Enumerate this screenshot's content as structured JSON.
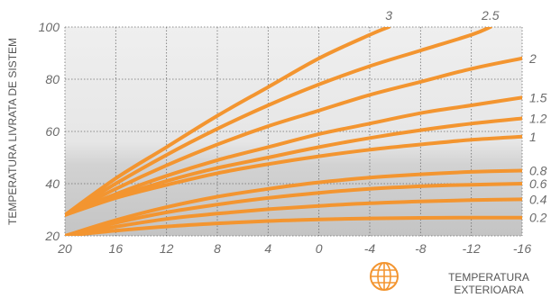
{
  "chart_data": {
    "type": "line",
    "title": "",
    "ylabel": "TEMPERATURA LIVRATA DE SISTEM",
    "xlabel_lines": [
      "TEMPERATURA",
      "EXTERIOARA"
    ],
    "xlabel_icon": "globe-icon",
    "x_ticks": [
      "20",
      "16",
      "12",
      "8",
      "4",
      "0",
      "-4",
      "-8",
      "-12",
      "-16"
    ],
    "y_ticks": [
      "20",
      "40",
      "60",
      "80",
      "100"
    ],
    "xlim": [
      20,
      -16
    ],
    "ylim": [
      20,
      100
    ],
    "grid": true,
    "colors": {
      "curve": "#f39530",
      "grid": "#6e6e6e",
      "plot_top": "#efefef",
      "plot_bottom": "#c7c7c7",
      "icon": "#f39530"
    },
    "series": [
      {
        "name": "3",
        "x": [
          20,
          16,
          12,
          8,
          4,
          0,
          -4,
          -5.5
        ],
        "y": [
          28,
          42,
          54,
          66,
          77,
          88,
          97,
          100
        ]
      },
      {
        "name": "2.5",
        "x": [
          20,
          16,
          12,
          8,
          4,
          0,
          -4,
          -8,
          -12,
          -13.5
        ],
        "y": [
          28,
          40,
          51,
          61,
          70,
          78,
          85,
          91,
          97,
          100
        ]
      },
      {
        "name": "2",
        "x": [
          20,
          16,
          12,
          8,
          4,
          0,
          -4,
          -8,
          -12,
          -16
        ],
        "y": [
          28,
          38,
          47,
          55,
          62,
          68,
          74,
          79,
          84,
          88
        ]
      },
      {
        "name": "1.5",
        "x": [
          20,
          16,
          12,
          8,
          4,
          0,
          -4,
          -8,
          -12,
          -16
        ],
        "y": [
          28,
          36,
          43,
          49,
          54,
          59,
          63,
          67,
          70,
          73
        ]
      },
      {
        "name": "1.2",
        "x": [
          20,
          16,
          12,
          8,
          4,
          0,
          -4,
          -8,
          -12,
          -16
        ],
        "y": [
          28,
          35,
          41,
          46,
          50,
          54,
          57.5,
          60.5,
          63,
          65
        ]
      },
      {
        "name": "1",
        "x": [
          20,
          16,
          12,
          8,
          4,
          0,
          -4,
          -8,
          -12,
          -16
        ],
        "y": [
          28,
          34.5,
          39.5,
          44,
          47.5,
          50.5,
          53,
          55,
          56.8,
          58
        ]
      },
      {
        "name": "0.8",
        "x": [
          20,
          16,
          12,
          8,
          4,
          0,
          -4,
          -8,
          -12,
          -16
        ],
        "y": [
          20,
          26,
          31,
          35,
          38,
          40.5,
          42.3,
          43.6,
          44.5,
          45
        ]
      },
      {
        "name": "0.6",
        "x": [
          20,
          16,
          12,
          8,
          4,
          0,
          -4,
          -8,
          -12,
          -16
        ],
        "y": [
          20,
          25,
          29,
          32,
          34.5,
          36.5,
          38,
          39,
          39.6,
          40
        ]
      },
      {
        "name": "0.4",
        "x": [
          20,
          16,
          12,
          8,
          4,
          0,
          -4,
          -8,
          -12,
          -16
        ],
        "y": [
          20,
          23.5,
          26.5,
          28.5,
          30.2,
          31.5,
          32.5,
          33.2,
          33.7,
          34
        ]
      },
      {
        "name": "0.2",
        "x": [
          20,
          16,
          12,
          8,
          4,
          0,
          -4,
          -8,
          -12,
          -16
        ],
        "y": [
          20,
          22,
          23.6,
          24.8,
          25.7,
          26.3,
          26.7,
          26.9,
          27,
          27
        ]
      }
    ]
  }
}
